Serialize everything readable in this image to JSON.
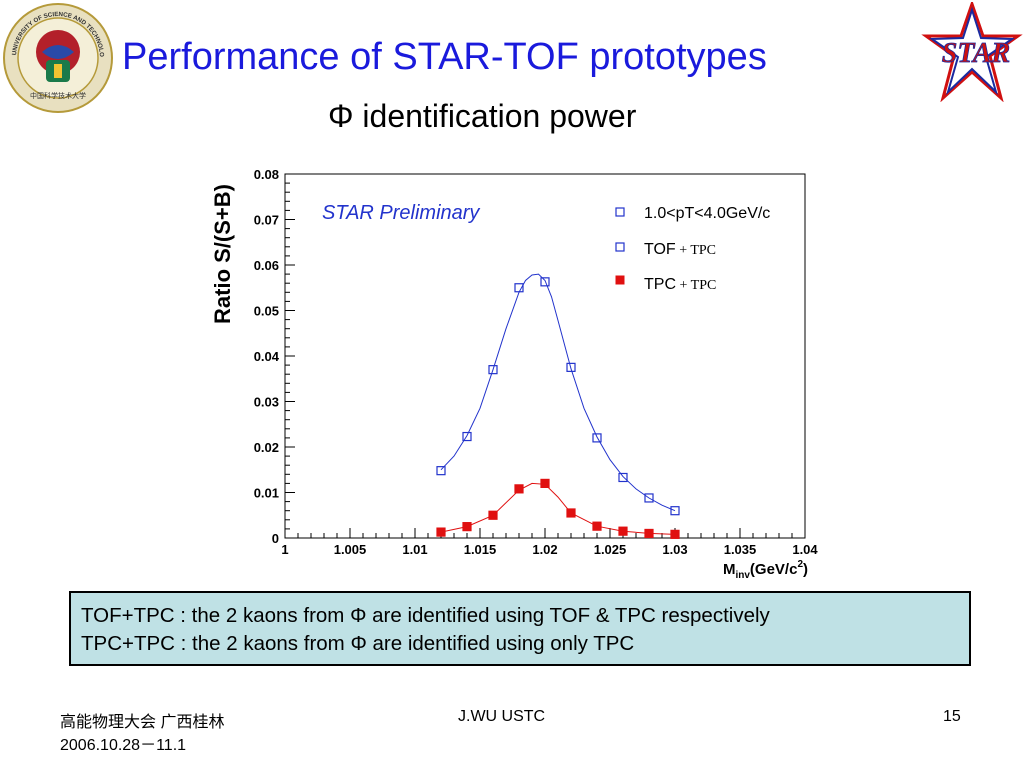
{
  "slide": {
    "title": "Performance of  STAR-TOF prototypes",
    "subtitle": "Φ identification power",
    "logo_left_text": "UNIVERSITY OF SCIENCE AND TECHNOLOGY OF CHINA",
    "logo_left_cn": "中国科学技术大学",
    "logo_right_text": "STAR",
    "notes": [
      "TOF+TPC : the 2 kaons from Φ are identified using TOF & TPC  respectively",
      "TPC+TPC : the 2 kaons from Φ are identified using only TPC"
    ],
    "footer": {
      "conference": "高能物理大会 广西桂林",
      "date": "2006.10.28－11.1",
      "author": "J.WU USTC",
      "page": "15"
    }
  },
  "colors": {
    "title": "#1a1adc",
    "tof_series": "#2233cc",
    "tpc_series": "#e01010",
    "notes_bg": "#bfe1e5"
  },
  "chart_data": {
    "type": "scatter",
    "ylabel": "Ratio S/(S+B)",
    "xlabel_main": "M",
    "xlabel_sub": "inv",
    "xlabel_unit": "(GeV/c",
    "xlabel_sup": "2",
    "xlabel_close": ")",
    "annotation": "STAR Preliminary",
    "legend_header": "1.0<pT<4.0GeV/c",
    "xlim": [
      1.0,
      1.04
    ],
    "ylim": [
      0,
      0.08
    ],
    "x_ticks": [
      1,
      1.005,
      1.01,
      1.015,
      1.02,
      1.025,
      1.03,
      1.035,
      1.04
    ],
    "x_tick_labels": [
      "1",
      "1.005",
      "1.01",
      "1.015",
      "1.02",
      "1.025",
      "1.03",
      "1.035",
      "1.04"
    ],
    "y_ticks": [
      0,
      0.01,
      0.02,
      0.03,
      0.04,
      0.05,
      0.06,
      0.07,
      0.08
    ],
    "y_tick_labels": [
      "0",
      "0.01",
      "0.02",
      "0.03",
      "0.04",
      "0.05",
      "0.06",
      "0.07",
      "0.08"
    ],
    "series": [
      {
        "name": "TOF + TPC",
        "legend_main": "TOF",
        "legend_suffix": " + TPC",
        "marker": "open-square",
        "x": [
          1.012,
          1.014,
          1.016,
          1.018,
          1.02,
          1.022,
          1.024,
          1.026,
          1.028,
          1.03
        ],
        "y": [
          0.0148,
          0.0223,
          0.037,
          0.055,
          0.0563,
          0.0375,
          0.022,
          0.0133,
          0.0088,
          0.006
        ],
        "fit": {
          "x": [
            1.012,
            1.013,
            1.014,
            1.015,
            1.016,
            1.017,
            1.018,
            1.0185,
            1.019,
            1.0195,
            1.02,
            1.0205,
            1.021,
            1.022,
            1.023,
            1.024,
            1.025,
            1.026,
            1.027,
            1.028,
            1.029,
            1.03
          ],
          "y": [
            0.015,
            0.018,
            0.0225,
            0.0285,
            0.037,
            0.046,
            0.054,
            0.0566,
            0.0578,
            0.058,
            0.0566,
            0.053,
            0.0478,
            0.0372,
            0.0285,
            0.0222,
            0.0172,
            0.0135,
            0.0108,
            0.0088,
            0.0072,
            0.006
          ]
        }
      },
      {
        "name": "TPC + TPC",
        "legend_main": "TPC",
        "legend_suffix": " + TPC",
        "marker": "filled-square",
        "x": [
          1.012,
          1.014,
          1.016,
          1.018,
          1.02,
          1.022,
          1.024,
          1.026,
          1.028,
          1.03
        ],
        "y": [
          0.0013,
          0.0025,
          0.005,
          0.0108,
          0.012,
          0.0055,
          0.0026,
          0.0015,
          0.001,
          0.0008
        ],
        "fit": {
          "x": [
            1.012,
            1.014,
            1.016,
            1.018,
            1.019,
            1.02,
            1.021,
            1.022,
            1.024,
            1.026,
            1.028,
            1.03
          ],
          "y": [
            0.0013,
            0.0025,
            0.005,
            0.0105,
            0.012,
            0.0118,
            0.009,
            0.0055,
            0.0026,
            0.0015,
            0.001,
            0.0008
          ]
        }
      }
    ]
  }
}
